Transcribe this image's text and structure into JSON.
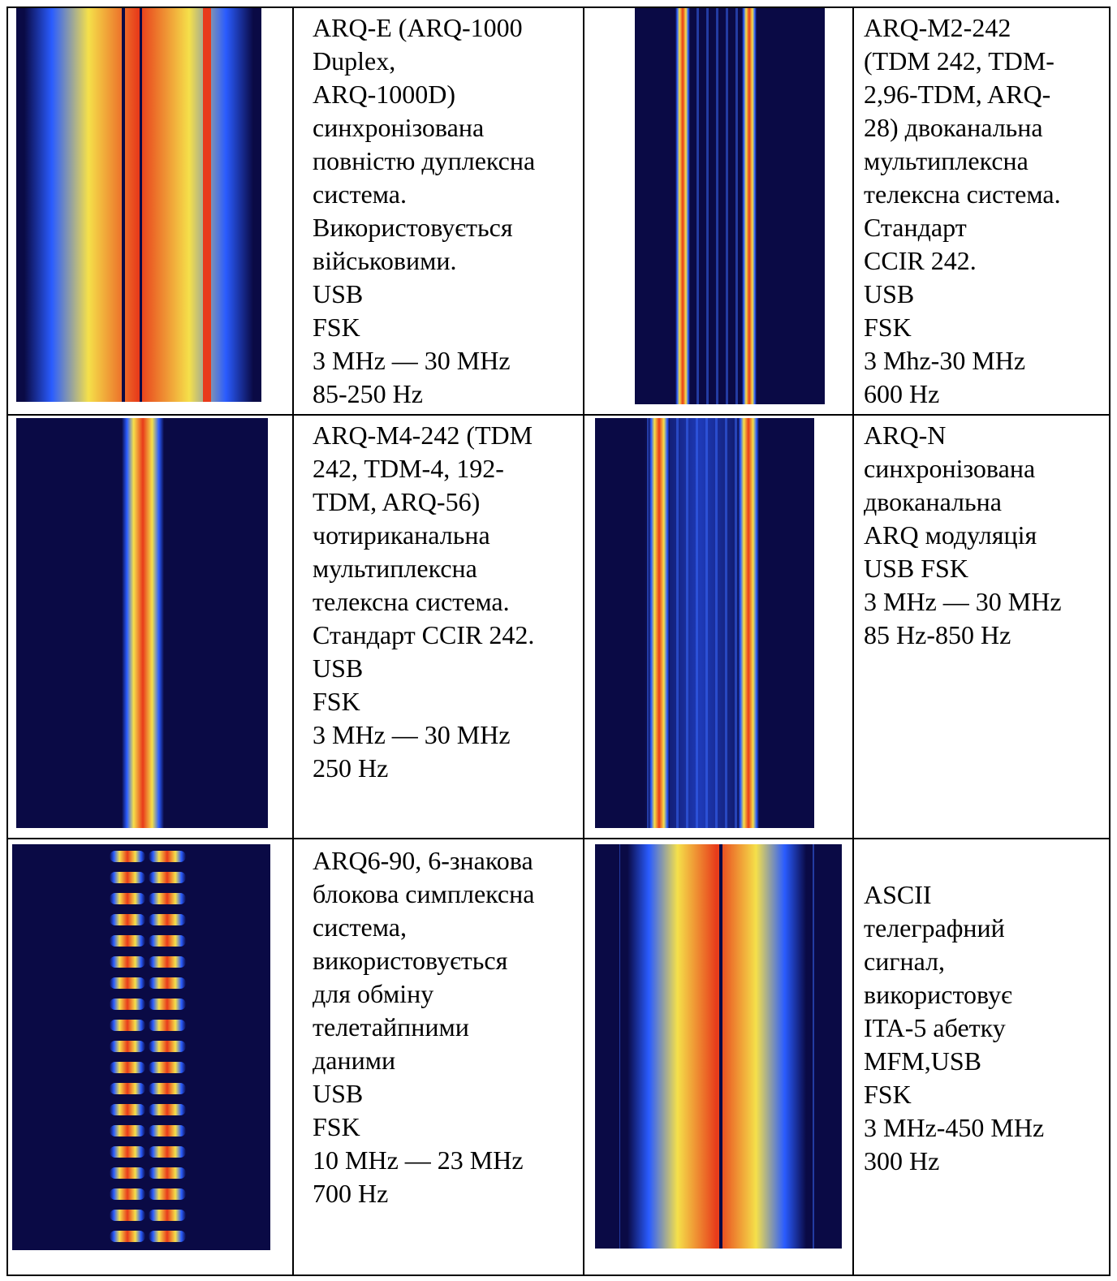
{
  "table": {
    "rows": [
      [
        {
          "lines": [
            "ARQ-E (ARQ-1000",
            "Duplex,",
            "ARQ-1000D)",
            "синхронізована",
            "повністю дуплексна",
            "система.",
            "Використовується",
            "військовими.",
            "USB",
            "FSK",
            "3 MHz — 30 MHz",
            "85-250 Hz"
          ]
        },
        {
          "lines": [
            "ARQ-M2-242",
            "(TDM 242, TDM-",
            "2,96-TDM,  ARQ-",
            "28)  двоканальна",
            "мультиплексна",
            "телексна система.",
            "Стандарт",
            "CCIR 242.",
            "USB",
            "FSK",
            "3 Mhz-30 MHz",
            "600 Hz"
          ]
        }
      ],
      [
        {
          "lines": [
            "ARQ-M4-242 (TDM",
            "242, TDM-4, 192-",
            "TDM, ARQ-56)",
            "чотириканальна",
            "мультиплексна",
            "телексна система.",
            "Стандарт CCIR 242.",
            "USB",
            "FSK",
            "3 MHz — 30 MHz",
            "250 Hz"
          ]
        },
        {
          "lines": [
            "ARQ-N",
            "синхронізована",
            "двоканальна",
            "ARQ модуляція",
            "USB  FSK",
            "3 MHz — 30 MHz",
            "85 Hz-850 Hz"
          ]
        }
      ],
      [
        {
          "lines": [
            "ARQ6-90, 6-знакова",
            "блокова симплексна",
            "система,",
            "використовується",
            "для обміну",
            "телетайпними",
            "даними",
            "USB",
            "FSK",
            "10 MHz — 23 MHz",
            "700 Hz"
          ]
        },
        {
          "lines": [
            "ASCII",
            "телеграфний",
            "сигнал,",
            "використовує",
            "ITA-5 абетку",
            "MFM,USB",
            "FSK",
            "3 MHz-450 MHz",
            "300 Hz"
          ]
        }
      ]
    ]
  }
}
